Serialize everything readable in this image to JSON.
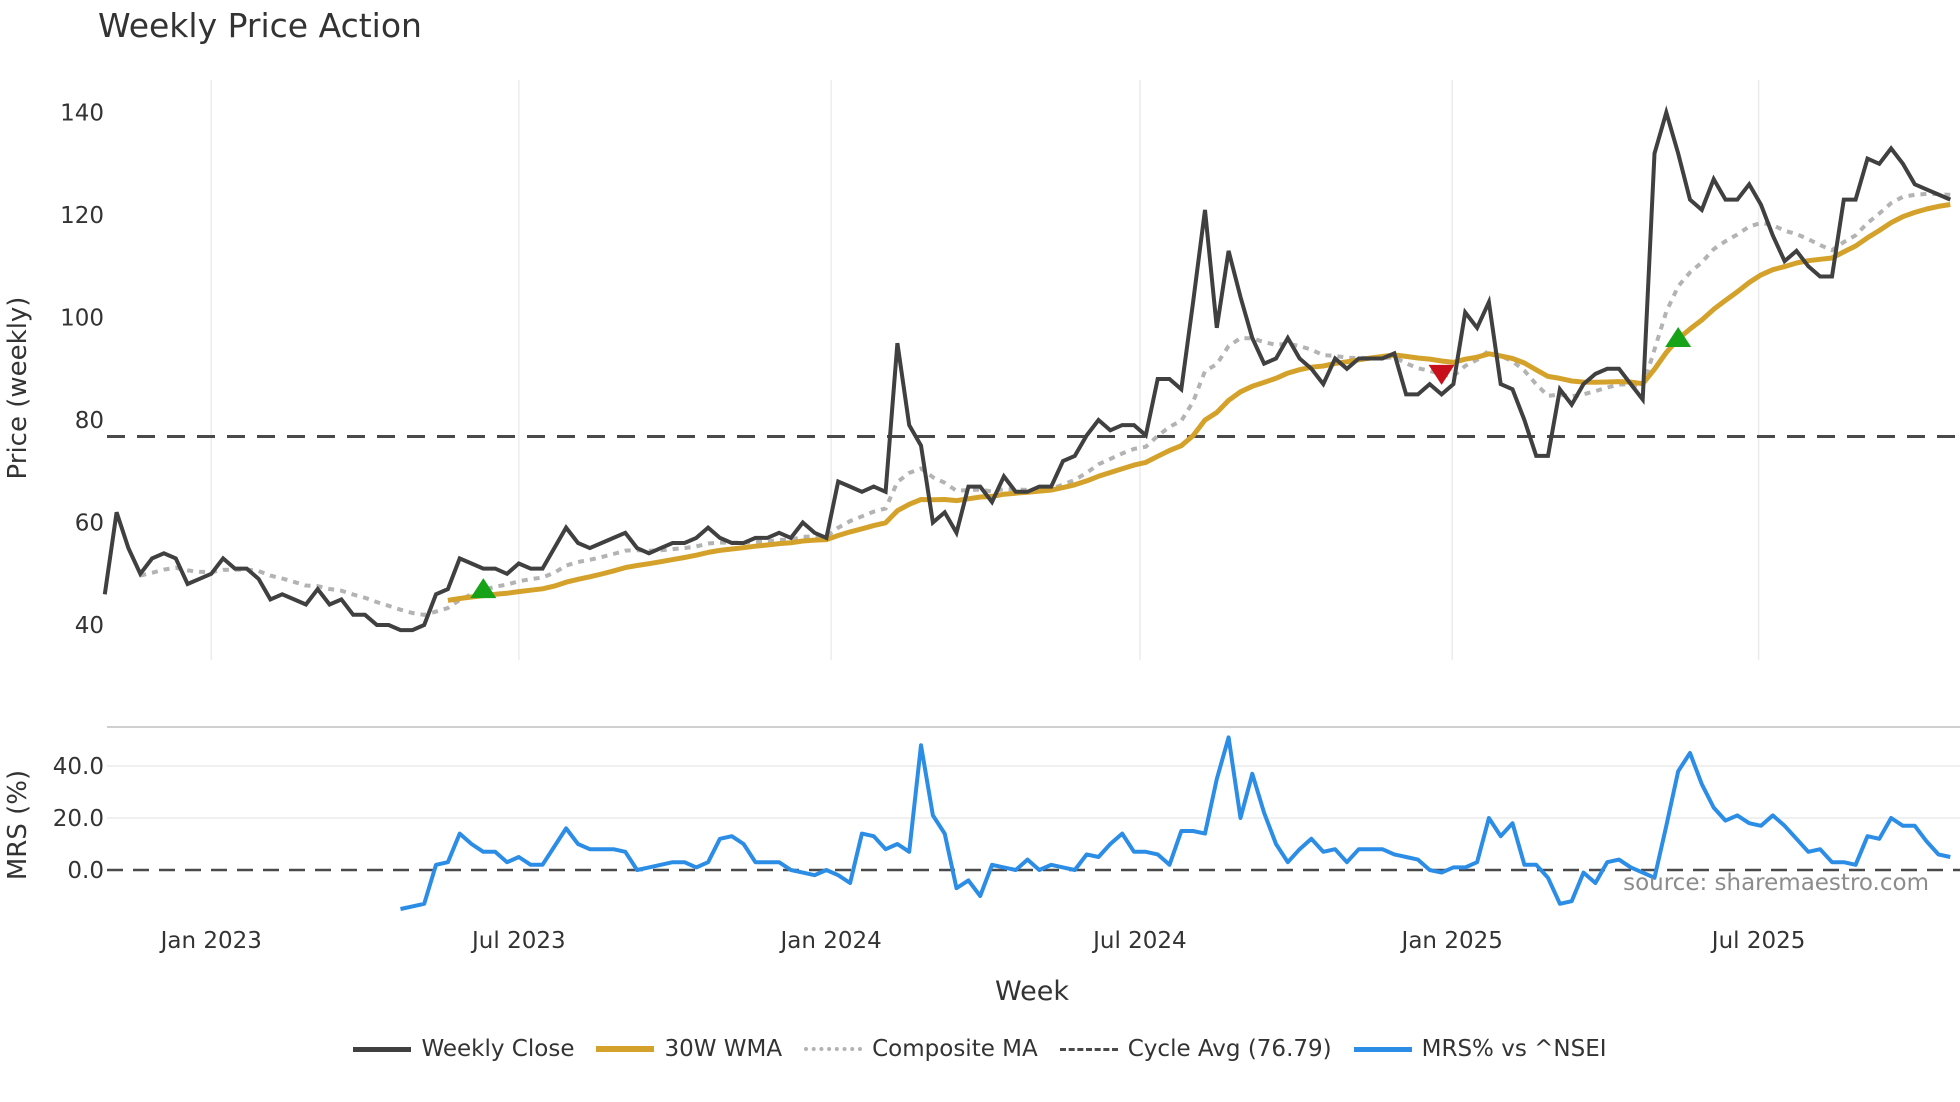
{
  "title": "Weekly Price Action",
  "source_label": "source: sharemaestro.com",
  "legend": {
    "weekly_close": "Weekly Close",
    "wma": "30W WMA",
    "composite": "Composite MA",
    "cycle": "Cycle Avg (76.79)",
    "mrs": "MRS% vs ^NSEI"
  },
  "colors": {
    "close": "#404040",
    "wma": "#d4a22a",
    "composite": "#b3b3b3",
    "cycle": "#4a4a4a",
    "mrs": "#2b8de6",
    "buy": "#17a317",
    "sell": "#c8101a",
    "grid": "#ececec"
  },
  "chart_data": [
    {
      "type": "line",
      "title": "Weekly Price Action",
      "xlabel": "Week",
      "ylabel": "Price (weekly)",
      "ylim": [
        33,
        146
      ],
      "yticks": [
        40,
        60,
        80,
        100,
        120,
        140
      ],
      "xticks": [
        {
          "label": "Jan 2023",
          "week": 0
        },
        {
          "label": "Jul 2023",
          "week": 26
        },
        {
          "label": "Jan 2024",
          "week": 52.4
        },
        {
          "label": "Jul 2024",
          "week": 78.5
        },
        {
          "label": "Jan 2025",
          "week": 104.9
        },
        {
          "label": "Jul 2025",
          "week": 130.8
        }
      ],
      "grid": true,
      "x_start_week": -9,
      "series": [
        {
          "name": "Weekly Close",
          "values": [
            46,
            62,
            55,
            50,
            53,
            54,
            53,
            48,
            49,
            50,
            53,
            51,
            51,
            49,
            45,
            46,
            45,
            44,
            47,
            44,
            45,
            42,
            42,
            40,
            40,
            39,
            39,
            40,
            46,
            47,
            53,
            52,
            51,
            51,
            50,
            52,
            51,
            51,
            55,
            59,
            56,
            55,
            56,
            57,
            58,
            55,
            54,
            55,
            56,
            56,
            57,
            59,
            57,
            56,
            56,
            57,
            57,
            58,
            57,
            60,
            58,
            57,
            68,
            67,
            66,
            67,
            66,
            95,
            79,
            75,
            60,
            62,
            58,
            67,
            67,
            64,
            69,
            66,
            66,
            67,
            67,
            72,
            73,
            77,
            80,
            78,
            79,
            79,
            77,
            88,
            88,
            86,
            103,
            121,
            98,
            113,
            104,
            96,
            91,
            92,
            96,
            92,
            90,
            87,
            92,
            90,
            92,
            92,
            92,
            93,
            85,
            85,
            87,
            85,
            87,
            101,
            98,
            103,
            87,
            86,
            80,
            73,
            73,
            86,
            83,
            87,
            89,
            90,
            90,
            87,
            84,
            132,
            140,
            132,
            123,
            121,
            127,
            123,
            123,
            126,
            122,
            116,
            111,
            113,
            110,
            108,
            108,
            123,
            123,
            131,
            130,
            133,
            130,
            126,
            125,
            124,
            123
          ]
        },
        {
          "name": "30W WMA",
          "period": 30
        },
        {
          "name": "Composite MA"
        },
        {
          "name": "Cycle Avg (76.79)",
          "value": 76.79
        }
      ],
      "markers": [
        {
          "type": "buy",
          "week": 23,
          "value": 47
        },
        {
          "type": "sell",
          "week": 104,
          "value": 89
        },
        {
          "type": "buy",
          "week": 124,
          "value": 96
        }
      ]
    },
    {
      "type": "line",
      "title": "MRS",
      "ylabel": "MRS (%)",
      "yticks": [
        "0.0",
        "20.0",
        "40.0"
      ],
      "ylim": [
        -20,
        55
      ],
      "zero_line": true,
      "series": [
        {
          "name": "MRS% vs ^NSEI",
          "start_week": 16,
          "values": [
            -15,
            -14,
            -13,
            2,
            3,
            14,
            10,
            7,
            7,
            3,
            5,
            2,
            2,
            9,
            16,
            10,
            8,
            8,
            8,
            7,
            0,
            1,
            2,
            3,
            3,
            1,
            3,
            12,
            13,
            10,
            3,
            3,
            3,
            0,
            -1,
            -2,
            0,
            -2,
            -5,
            14,
            13,
            8,
            10,
            7,
            48,
            21,
            14,
            -7,
            -4,
            -10,
            2,
            1,
            0,
            4,
            0,
            2,
            1,
            0,
            6,
            5,
            10,
            14,
            7,
            7,
            6,
            2,
            15,
            15,
            14,
            35,
            51,
            20,
            37,
            22,
            10,
            3,
            8,
            12,
            7,
            8,
            3,
            8,
            8,
            8,
            6,
            5,
            4,
            0,
            -1,
            1,
            1,
            3,
            20,
            13,
            18,
            2,
            2,
            -3,
            -13,
            -12,
            -1,
            -5,
            3,
            4,
            1,
            -1,
            -3,
            17,
            38,
            45,
            33,
            24,
            19,
            21,
            18,
            17,
            21,
            17,
            12,
            7,
            8,
            3,
            3,
            2,
            13,
            12,
            20,
            17,
            17,
            11,
            6,
            5
          ]
        }
      ]
    }
  ]
}
